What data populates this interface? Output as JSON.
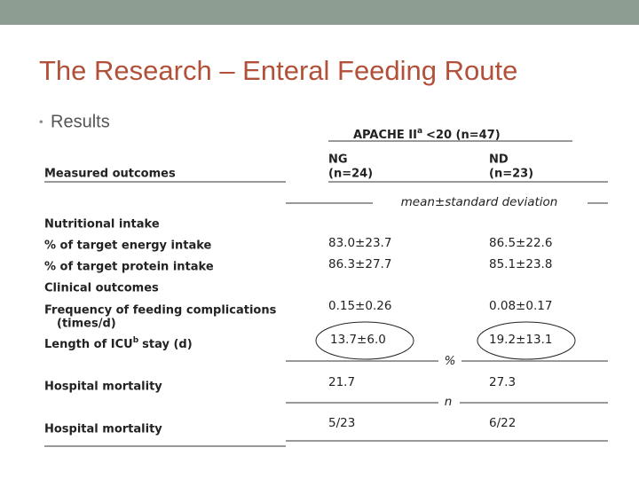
{
  "slide": {
    "title": "The Research – Enteral Feeding Route",
    "bullet": "Results"
  },
  "table": {
    "group_header": {
      "name": "APACHE II",
      "superscript": "a",
      "condition": "<20 (n=47)"
    },
    "row_header": "Measured outcomes",
    "columns": [
      {
        "name": "NG",
        "n": "(n=24)"
      },
      {
        "name": "ND",
        "n": "(n=23)"
      }
    ],
    "units": [
      "mean±standard deviation",
      "%",
      "n"
    ],
    "sections": [
      "Nutritional intake",
      "Clinical outcomes"
    ],
    "rows": [
      {
        "label": "% of target energy intake",
        "values": [
          "83.0±23.7",
          "86.5±22.6"
        ]
      },
      {
        "label": "% of target protein intake",
        "values": [
          "86.3±27.7",
          "85.1±23.8"
        ]
      },
      {
        "label": "Frequency of feeding complications",
        "label_line2": "(times/d)",
        "values": [
          "0.15±0.26",
          "0.08±0.17"
        ]
      },
      {
        "label": "Length of ICU",
        "superscript": "b",
        "label_end": "stay (d)",
        "values": [
          "13.7±6.0",
          "19.2±13.1"
        ]
      },
      {
        "label": "Hospital mortality",
        "values": [
          "21.7",
          "27.3"
        ]
      },
      {
        "label": "Hospital mortality",
        "values": [
          "5/23",
          "6/22"
        ]
      }
    ]
  }
}
